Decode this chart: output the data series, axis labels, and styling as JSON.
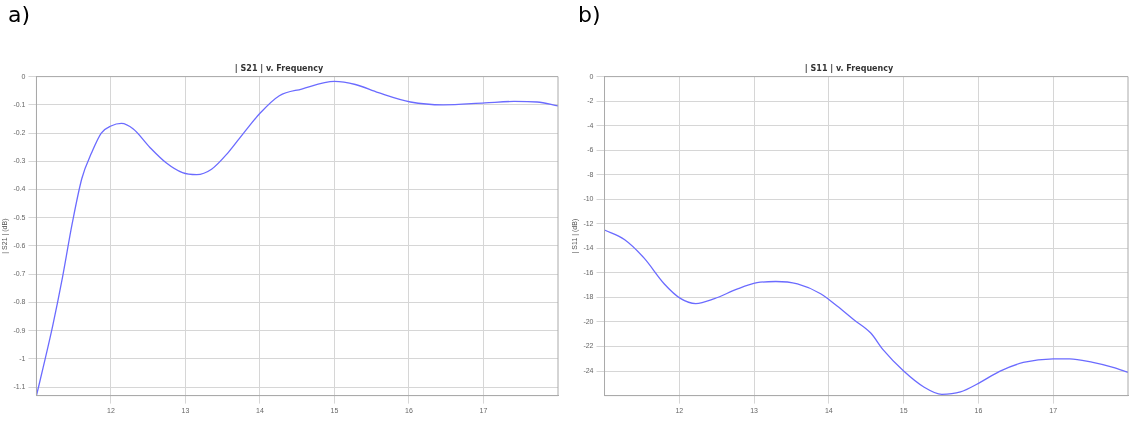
{
  "chart_data": [
    {
      "type": "line",
      "title": "| S21 | v. Frequency",
      "ylabel": "| S21 | (dB)",
      "annotations": [
        "a)"
      ],
      "grid": true,
      "legend": false,
      "marker": "none",
      "line_style": "solid",
      "xlim": [
        11,
        18
      ],
      "xticks": [
        12,
        13,
        14,
        15,
        16,
        17
      ],
      "ylim": [
        -1.13,
        0
      ],
      "yticks": [
        0,
        -0.1,
        -0.2,
        -0.3,
        -0.4,
        -0.5,
        -0.6,
        -0.7,
        -0.8,
        -0.9,
        -1,
        -1.1
      ],
      "series": [
        {
          "color": "#6b6bff",
          "x": [
            11,
            11.09,
            11.22,
            11.35,
            11.48,
            11.61,
            11.74,
            11.87,
            12,
            12.14,
            12.3,
            12.52,
            12.74,
            12.96,
            13.15,
            13.35,
            13.57,
            13.78,
            14,
            14.26,
            14.56,
            15,
            15.28,
            15.59,
            16.02,
            16.46,
            17.02,
            17.41,
            17.72,
            18
          ],
          "values": [
            -1.13,
            -1.03,
            -0.88,
            -0.71,
            -0.52,
            -0.36,
            -0.27,
            -0.2,
            -0.175,
            -0.166,
            -0.186,
            -0.25,
            -0.305,
            -0.34,
            -0.347,
            -0.328,
            -0.27,
            -0.2,
            -0.13,
            -0.068,
            -0.044,
            -0.017,
            -0.028,
            -0.057,
            -0.09,
            -0.1,
            -0.093,
            -0.088,
            -0.09,
            -0.104
          ]
        }
      ]
    },
    {
      "type": "line",
      "title": "| S11 | v. Frequency",
      "ylabel": "| S11 | (dB)",
      "annotations": [
        "b)"
      ],
      "grid": true,
      "legend": false,
      "marker": "none",
      "line_style": "solid",
      "xlim": [
        11,
        18
      ],
      "xticks": [
        12,
        13,
        14,
        15,
        16,
        17
      ],
      "ylim": [
        -26,
        0
      ],
      "yticks": [
        0,
        -2,
        -4,
        -6,
        -8,
        -10,
        -12,
        -14,
        -16,
        -18,
        -20,
        -22,
        -24
      ],
      "series": [
        {
          "color": "#6b6bff",
          "x": [
            11,
            11.27,
            11.53,
            11.8,
            12.02,
            12.22,
            12.47,
            12.78,
            13.04,
            13.29,
            13.58,
            13.89,
            14.11,
            14.33,
            14.56,
            14.73,
            15,
            15.27,
            15.51,
            15.76,
            16,
            16.29,
            16.6,
            17,
            17.22,
            17.53,
            17.8,
            18
          ],
          "values": [
            -12.5,
            -13.3,
            -14.8,
            -16.9,
            -18.1,
            -18.5,
            -18.1,
            -17.3,
            -16.8,
            -16.7,
            -16.9,
            -17.7,
            -18.7,
            -19.8,
            -20.9,
            -22.3,
            -24,
            -25.3,
            -25.9,
            -25.7,
            -25,
            -24,
            -23.3,
            -23,
            -23,
            -23.3,
            -23.7,
            -24.1
          ]
        }
      ]
    }
  ]
}
